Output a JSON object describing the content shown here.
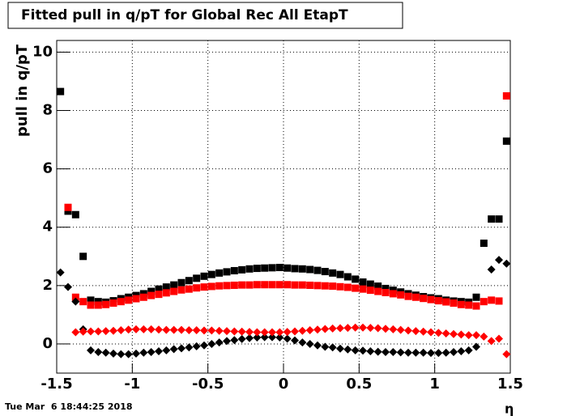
{
  "chart_data": {
    "type": "scatter",
    "title": "Fitted pull in q/pT for Global Rec All EtapT",
    "y_label": "pull in q/pT",
    "x_label": "η",
    "footer": "Tue Mar  6 18:44:25 2018",
    "x": [
      -1.475,
      -1.425,
      -1.375,
      -1.325,
      -1.275,
      -1.225,
      -1.175,
      -1.125,
      -1.075,
      -1.025,
      -0.975,
      -0.925,
      -0.875,
      -0.825,
      -0.775,
      -0.725,
      -0.675,
      -0.625,
      -0.575,
      -0.525,
      -0.475,
      -0.425,
      -0.375,
      -0.325,
      -0.275,
      -0.225,
      -0.175,
      -0.125,
      -0.075,
      -0.025,
      0.025,
      0.075,
      0.125,
      0.175,
      0.225,
      0.275,
      0.325,
      0.375,
      0.425,
      0.475,
      0.525,
      0.575,
      0.625,
      0.675,
      0.725,
      0.775,
      0.825,
      0.875,
      0.925,
      0.975,
      1.025,
      1.075,
      1.125,
      1.175,
      1.225,
      1.275,
      1.325,
      1.375,
      1.425,
      1.475
    ],
    "series": [
      {
        "color": "#000000",
        "marker": "square",
        "values": [
          8.65,
          4.55,
          4.43,
          3.0,
          1.5,
          1.45,
          1.43,
          1.48,
          1.55,
          1.6,
          1.66,
          1.72,
          1.8,
          1.88,
          1.95,
          2.02,
          2.1,
          2.17,
          2.25,
          2.32,
          2.38,
          2.43,
          2.47,
          2.51,
          2.54,
          2.57,
          2.59,
          2.6,
          2.61,
          2.62,
          2.6,
          2.58,
          2.57,
          2.55,
          2.52,
          2.48,
          2.43,
          2.38,
          2.3,
          2.22,
          2.12,
          2.05,
          1.98,
          1.9,
          1.84,
          1.78,
          1.72,
          1.67,
          1.62,
          1.58,
          1.55,
          1.5,
          1.47,
          1.45,
          1.43,
          1.6,
          3.45,
          4.28,
          4.28,
          6.95
        ]
      },
      {
        "color": "#ff0000",
        "marker": "square",
        "values": [
          null,
          4.68,
          1.6,
          1.45,
          1.33,
          1.33,
          1.35,
          1.4,
          1.45,
          1.5,
          1.55,
          1.6,
          1.66,
          1.7,
          1.75,
          1.8,
          1.85,
          1.88,
          1.92,
          1.95,
          1.97,
          1.99,
          2.0,
          2.01,
          2.02,
          2.02,
          2.03,
          2.03,
          2.03,
          2.03,
          2.03,
          2.02,
          2.02,
          2.01,
          2.0,
          1.99,
          1.98,
          1.96,
          1.94,
          1.91,
          1.88,
          1.84,
          1.8,
          1.76,
          1.72,
          1.68,
          1.63,
          1.6,
          1.56,
          1.52,
          1.48,
          1.44,
          1.4,
          1.35,
          1.33,
          1.3,
          1.45,
          1.5,
          1.47,
          8.5
        ]
      },
      {
        "color": "#000000",
        "marker": "diamond",
        "values": [
          2.45,
          1.95,
          1.45,
          0.5,
          -0.22,
          -0.28,
          -0.3,
          -0.33,
          -0.35,
          -0.35,
          -0.33,
          -0.3,
          -0.28,
          -0.25,
          -0.22,
          -0.18,
          -0.15,
          -0.12,
          -0.08,
          -0.05,
          0.0,
          0.05,
          0.1,
          0.13,
          0.17,
          0.2,
          0.22,
          0.23,
          0.23,
          0.22,
          0.18,
          0.12,
          0.05,
          0.0,
          -0.05,
          -0.1,
          -0.12,
          -0.16,
          -0.19,
          -0.22,
          -0.23,
          -0.25,
          -0.27,
          -0.28,
          -0.28,
          -0.29,
          -0.3,
          -0.3,
          -0.3,
          -0.31,
          -0.31,
          -0.3,
          -0.28,
          -0.25,
          -0.22,
          -0.1,
          null,
          2.55,
          2.88,
          2.75
        ]
      },
      {
        "color": "#ff0000",
        "marker": "diamond",
        "values": [
          null,
          null,
          0.4,
          0.42,
          0.43,
          0.43,
          0.44,
          0.45,
          0.47,
          0.49,
          0.5,
          0.5,
          0.5,
          0.49,
          0.48,
          0.48,
          0.48,
          0.47,
          0.47,
          0.46,
          0.46,
          0.45,
          0.44,
          0.43,
          0.42,
          0.41,
          0.4,
          0.4,
          0.4,
          0.4,
          0.41,
          0.43,
          0.45,
          0.47,
          0.49,
          0.51,
          0.53,
          0.54,
          0.55,
          0.56,
          0.56,
          0.55,
          0.54,
          0.52,
          0.5,
          0.48,
          0.46,
          0.44,
          0.42,
          0.4,
          0.38,
          0.36,
          0.34,
          0.32,
          0.3,
          0.3,
          0.25,
          0.1,
          0.18,
          -0.35
        ]
      }
    ],
    "xlim": [
      -1.5,
      1.5
    ],
    "ylim": [
      -1.0,
      10.4
    ],
    "xticks": [
      -1.5,
      -1,
      -0.5,
      0,
      0.5,
      1,
      1.5
    ],
    "yticks": [
      0,
      2,
      4,
      6,
      8,
      10
    ],
    "grid": true
  }
}
